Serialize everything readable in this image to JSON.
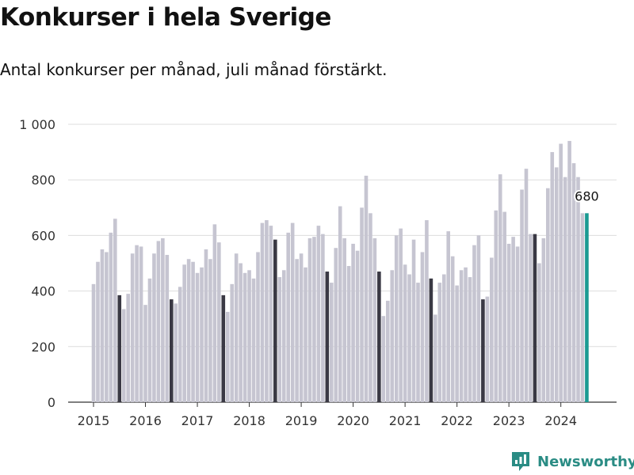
{
  "title": "Konkurser i hela Sverige",
  "subtitle": "Antal konkurser per månad, juli månad förstärkt.",
  "brand": {
    "name": "Newsworthy",
    "icon": "newsworthy-logo-icon"
  },
  "colors": {
    "bar": "#c6c5d1",
    "highlight": "#3a3944",
    "latest": "#1a9a92",
    "grid": "#dddddd"
  },
  "chart_data": {
    "type": "bar",
    "title": "Konkurser i hela Sverige",
    "subtitle": "Antal konkurser per månad, juli månad förstärkt.",
    "xlabel": "",
    "ylabel": "",
    "ylim": [
      0,
      1000
    ],
    "yticks": [
      0,
      200,
      400,
      600,
      800,
      1000
    ],
    "ytick_labels": [
      "0",
      "200",
      "400",
      "600",
      "800",
      "1 000"
    ],
    "xtick_labels": [
      "2015",
      "2016",
      "2017",
      "2018",
      "2019",
      "2020",
      "2021",
      "2022",
      "2023",
      "2024"
    ],
    "start": "2015-01",
    "highlight_month": "juli",
    "grid": true,
    "annotation": {
      "text": "680",
      "month": "2024-07"
    },
    "series": [
      {
        "year": 2015,
        "values": [
          425,
          505,
          550,
          540,
          610,
          660,
          385,
          335,
          390,
          535,
          565,
          560
        ]
      },
      {
        "year": 2016,
        "values": [
          350,
          445,
          535,
          580,
          590,
          530,
          370,
          355,
          415,
          495,
          515,
          505
        ]
      },
      {
        "year": 2017,
        "values": [
          465,
          485,
          550,
          515,
          640,
          575,
          385,
          325,
          425,
          535,
          500,
          465
        ]
      },
      {
        "year": 2018,
        "values": [
          475,
          445,
          540,
          645,
          655,
          635,
          585,
          450,
          475,
          610,
          645,
          515
        ]
      },
      {
        "year": 2019,
        "values": [
          535,
          485,
          590,
          595,
          635,
          605,
          470,
          430,
          555,
          705,
          590,
          490
        ]
      },
      {
        "year": 2020,
        "values": [
          570,
          545,
          700,
          815,
          680,
          590,
          470,
          310,
          365,
          475,
          600,
          625
        ]
      },
      {
        "year": 2021,
        "values": [
          495,
          460,
          585,
          430,
          540,
          655,
          445,
          315,
          430,
          460,
          615,
          525
        ]
      },
      {
        "year": 2022,
        "values": [
          420,
          475,
          485,
          450,
          565,
          600,
          370,
          380,
          520,
          690,
          820,
          685
        ]
      },
      {
        "year": 2023,
        "values": [
          570,
          595,
          560,
          765,
          840,
          605,
          605,
          500,
          590,
          770,
          900,
          845
        ]
      },
      {
        "year": 2024,
        "values": [
          930,
          810,
          940,
          860,
          810,
          680,
          680
        ]
      }
    ]
  }
}
